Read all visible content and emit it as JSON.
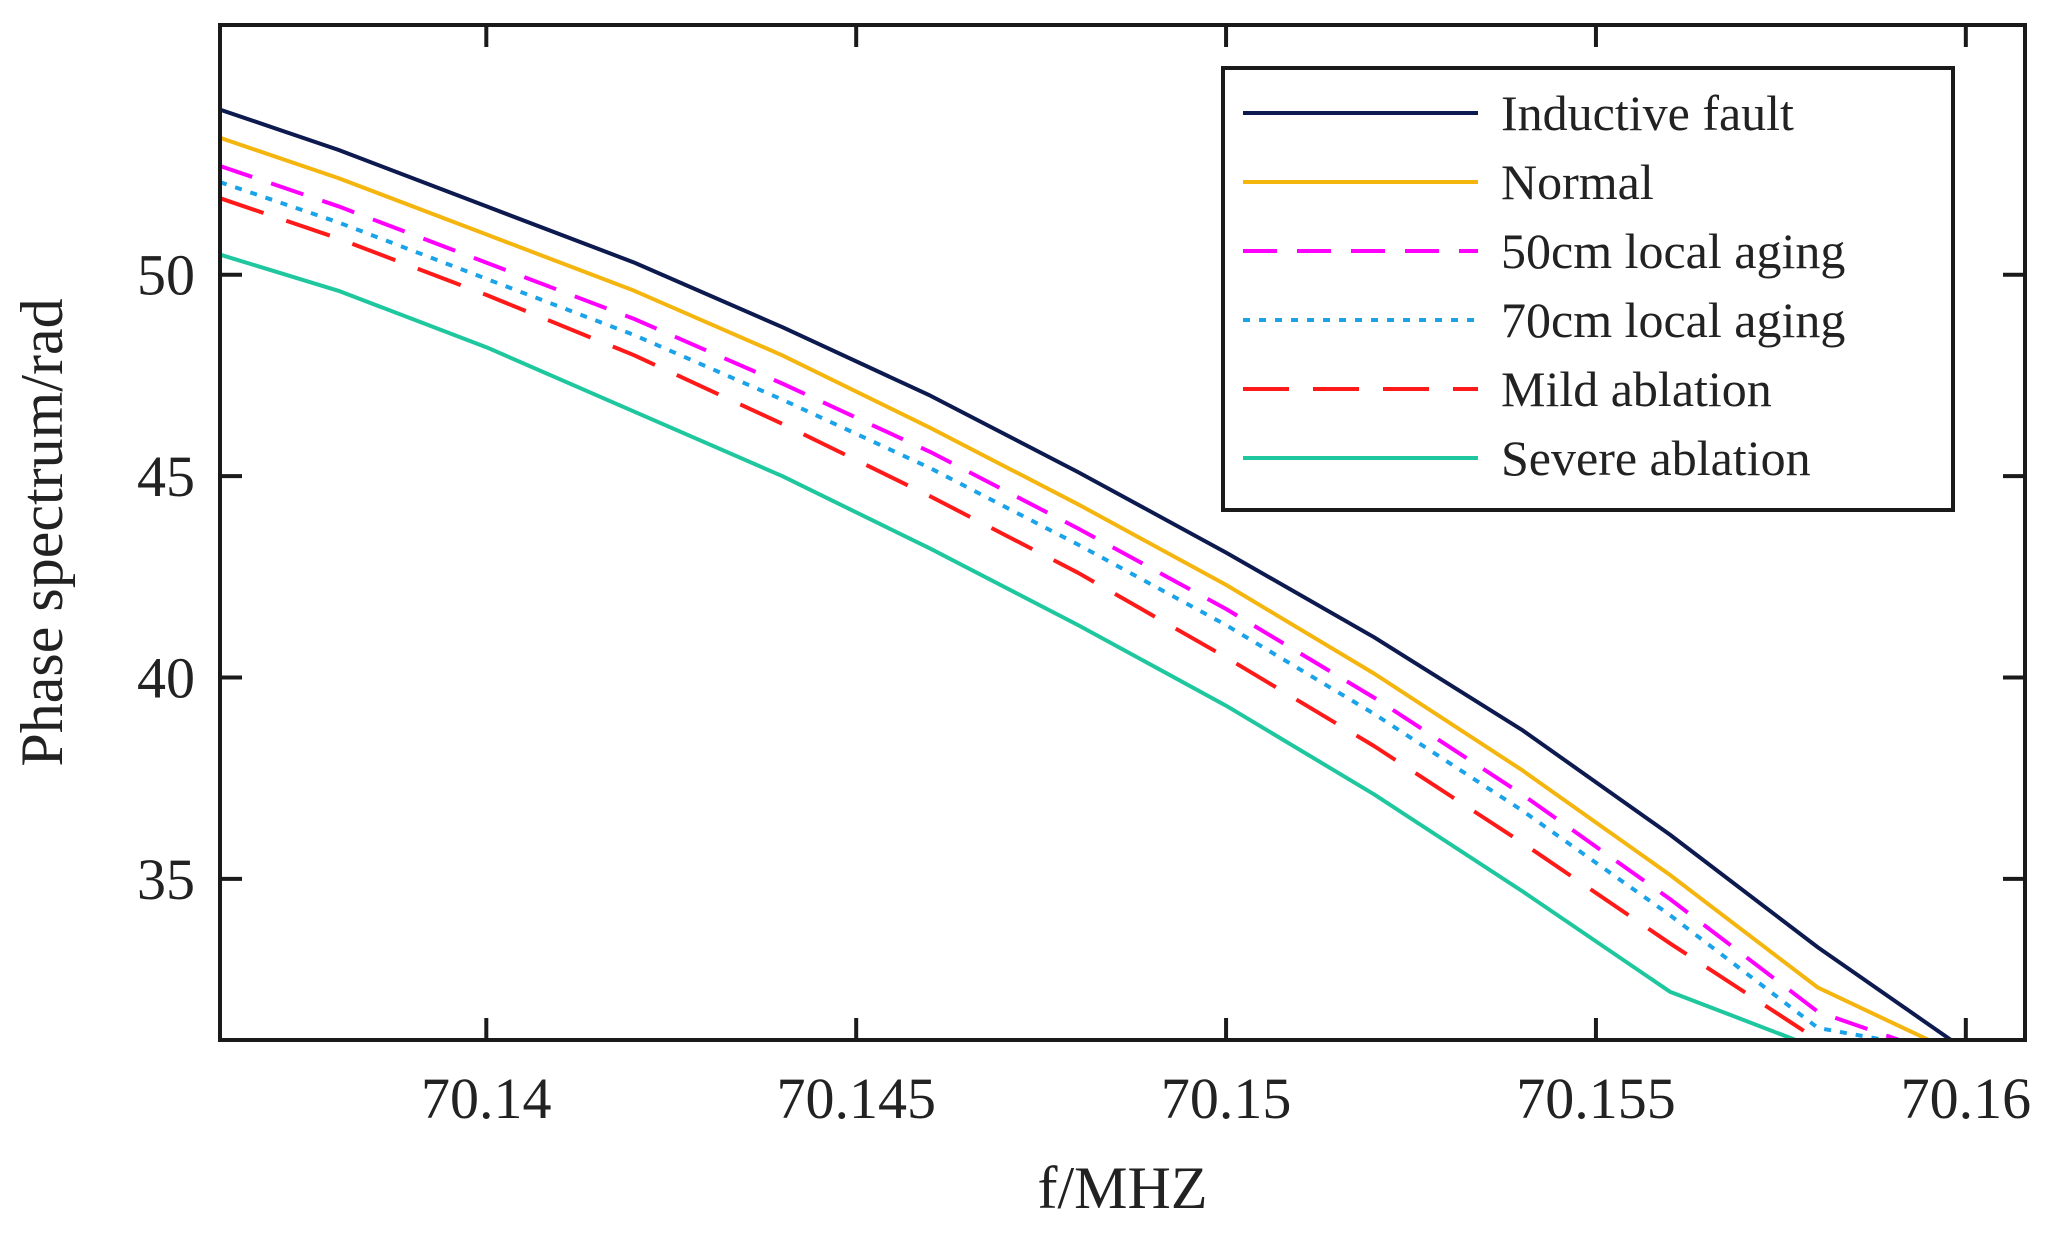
{
  "chart_data": {
    "type": "line",
    "title": "",
    "xlabel": "f/MHZ",
    "ylabel": "Phase spectrum/rad",
    "xlim": [
      70.1364,
      70.1608
    ],
    "ylim": [
      31,
      56.2
    ],
    "xticks": [
      70.14,
      70.145,
      70.15,
      70.155,
      70.16
    ],
    "xtick_labels": [
      "70.14",
      "70.145",
      "70.15",
      "70.155",
      "70.16"
    ],
    "yticks": [
      35,
      40,
      45,
      50
    ],
    "ytick_labels": [
      "35",
      "40",
      "45",
      "50"
    ],
    "grid": false,
    "legend_position": "top-right",
    "series": [
      {
        "name": "Inductive fault",
        "color": "#0d1a4f",
        "dash": "solid",
        "x": [
          70.1364,
          70.138,
          70.14,
          70.142,
          70.144,
          70.146,
          70.148,
          70.15,
          70.152,
          70.154,
          70.156,
          70.158,
          70.1598
        ],
        "y": [
          54.1,
          53.1,
          51.7,
          50.3,
          48.7,
          47.0,
          45.1,
          43.1,
          41.0,
          38.7,
          36.1,
          33.3,
          31.0
        ]
      },
      {
        "name": "Normal",
        "color": "#f5b50f",
        "dash": "solid",
        "x": [
          70.1364,
          70.138,
          70.14,
          70.142,
          70.144,
          70.146,
          70.148,
          70.15,
          70.152,
          70.154,
          70.156,
          70.158,
          70.1595
        ],
        "y": [
          53.4,
          52.4,
          51.0,
          49.6,
          48.0,
          46.2,
          44.3,
          42.3,
          40.1,
          37.7,
          35.1,
          32.3,
          31.0
        ]
      },
      {
        "name": "50cm local aging",
        "color": "#ff00ff",
        "dash": "dashed",
        "x": [
          70.1364,
          70.138,
          70.14,
          70.142,
          70.144,
          70.146,
          70.148,
          70.15,
          70.152,
          70.154,
          70.156,
          70.158,
          70.1591
        ],
        "y": [
          52.7,
          51.7,
          50.3,
          48.9,
          47.3,
          45.6,
          43.7,
          41.7,
          39.5,
          37.1,
          34.5,
          31.7,
          31.0
        ]
      },
      {
        "name": "70cm local aging",
        "color": "#1aa3e8",
        "dash": "dotted",
        "x": [
          70.1364,
          70.138,
          70.14,
          70.142,
          70.144,
          70.146,
          70.148,
          70.15,
          70.152,
          70.154,
          70.156,
          70.158,
          70.1589
        ],
        "y": [
          52.3,
          51.3,
          49.9,
          48.5,
          46.9,
          45.2,
          43.3,
          41.3,
          39.1,
          36.7,
          34.1,
          31.3,
          31.0
        ]
      },
      {
        "name": "Mild ablation",
        "color": "#ff1a1a",
        "dash": "longdash",
        "x": [
          70.1364,
          70.138,
          70.14,
          70.142,
          70.144,
          70.146,
          70.148,
          70.15,
          70.152,
          70.154,
          70.156,
          70.158
        ],
        "y": [
          51.9,
          50.9,
          49.5,
          48.0,
          46.3,
          44.5,
          42.6,
          40.5,
          38.3,
          35.9,
          33.4,
          31.0
        ]
      },
      {
        "name": "Severe ablation",
        "color": "#1fc79e",
        "dash": "solid",
        "x": [
          70.1364,
          70.138,
          70.14,
          70.142,
          70.144,
          70.146,
          70.148,
          70.15,
          70.152,
          70.154,
          70.156,
          70.1577
        ],
        "y": [
          50.5,
          49.6,
          48.2,
          46.6,
          45.0,
          43.2,
          41.3,
          39.3,
          37.1,
          34.7,
          32.2,
          31.0
        ]
      }
    ]
  }
}
